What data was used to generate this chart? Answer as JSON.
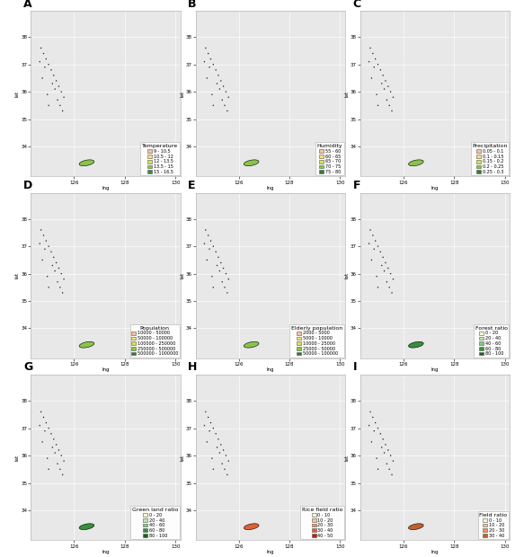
{
  "panels": [
    {
      "label": "A",
      "title": "Temperature",
      "legend_labels": [
        "9 - 10.5",
        "10.5 - 12",
        "12 - 13.5",
        "13.5 - 15",
        "15 - 16.5"
      ],
      "colors": [
        "#f4c2a1",
        "#f5e07a",
        "#d4e157",
        "#8bc34a",
        "#388e3c"
      ],
      "color_weights": [
        0.1,
        0.25,
        0.35,
        0.2,
        0.1
      ]
    },
    {
      "label": "B",
      "title": "Humidity",
      "legend_labels": [
        "55 - 60",
        "60 - 65",
        "65 - 70",
        "70 - 75",
        "75 - 80"
      ],
      "colors": [
        "#f4c2a1",
        "#f5e07a",
        "#d4e157",
        "#8bc34a",
        "#2e7d32"
      ],
      "color_weights": [
        0.1,
        0.2,
        0.35,
        0.25,
        0.1
      ]
    },
    {
      "label": "C",
      "title": "Precipitation",
      "legend_labels": [
        "0.05 - 0.1",
        "0.1 - 0.15",
        "0.15 - 0.2",
        "0.2 - 0.25",
        "0.25 - 0.3"
      ],
      "colors": [
        "#f4c2a1",
        "#f5e07a",
        "#d4e157",
        "#8bc34a",
        "#2e7d32"
      ],
      "color_weights": [
        0.05,
        0.1,
        0.55,
        0.2,
        0.1
      ]
    },
    {
      "label": "D",
      "title": "Population",
      "legend_labels": [
        "10000 - 50000",
        "50000 - 100000",
        "100000 - 250000",
        "250000 - 500000",
        "500000 - 1000000"
      ],
      "colors": [
        "#f4c2a1",
        "#f5e07a",
        "#d4e157",
        "#8bc34a",
        "#2e7d32"
      ],
      "color_weights": [
        0.35,
        0.25,
        0.2,
        0.1,
        0.1
      ]
    },
    {
      "label": "E",
      "title": "Elderly population",
      "legend_labels": [
        "2000 - 5000",
        "5000 - 10000",
        "10000 - 25000",
        "25000 - 50000",
        "50000 - 100000"
      ],
      "colors": [
        "#f4c2a1",
        "#f5e07a",
        "#d4e157",
        "#8bc34a",
        "#2e7d32"
      ],
      "color_weights": [
        0.2,
        0.25,
        0.3,
        0.15,
        0.1
      ]
    },
    {
      "label": "F",
      "title": "Forest ratio",
      "legend_labels": [
        "0 - 20",
        "20 - 40",
        "40 - 60",
        "60 - 80",
        "80 - 100"
      ],
      "colors": [
        "#f9f6d0",
        "#c5e1a5",
        "#81c784",
        "#388e3c",
        "#1b5e20"
      ],
      "color_weights": [
        0.1,
        0.15,
        0.3,
        0.3,
        0.15
      ]
    },
    {
      "label": "G",
      "title": "Green land ratio",
      "legend_labels": [
        "0 - 20",
        "20 - 40",
        "40 - 60",
        "60 - 80",
        "80 - 100"
      ],
      "colors": [
        "#f9f6d0",
        "#c5e1a5",
        "#81c784",
        "#388e3c",
        "#1b5e20"
      ],
      "color_weights": [
        0.2,
        0.2,
        0.25,
        0.2,
        0.15
      ]
    },
    {
      "label": "H",
      "title": "Rice field ratio",
      "legend_labels": [
        "0 - 10",
        "10 - 20",
        "20 - 30",
        "30 - 40",
        "40 - 50"
      ],
      "colors": [
        "#f9f6d0",
        "#f4c2a1",
        "#f09060",
        "#e06030",
        "#c02010"
      ],
      "color_weights": [
        0.3,
        0.3,
        0.2,
        0.15,
        0.05
      ]
    },
    {
      "label": "I",
      "title": "Field ratio",
      "legend_labels": [
        "0 - 10",
        "10 - 20",
        "20 - 30",
        "30 - 40"
      ],
      "colors": [
        "#f9f6d0",
        "#f4c2a1",
        "#f09060",
        "#c06030"
      ],
      "color_weights": [
        0.3,
        0.35,
        0.25,
        0.1
      ]
    }
  ],
  "xlim": [
    124.3,
    130.2
  ],
  "ylim": [
    32.9,
    38.95
  ],
  "xticks": [
    126,
    128,
    130
  ],
  "yticks": [
    34,
    35,
    36,
    37,
    38
  ],
  "bg_color": "#e8e8e8"
}
